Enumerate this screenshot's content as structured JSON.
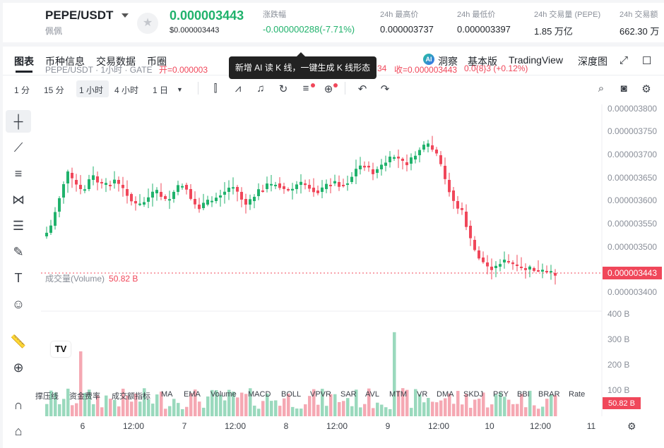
{
  "header": {
    "symbol": "PEPE/USDT",
    "cn_name": "佩佩",
    "price": "0.000003443",
    "price_usd": "$0.000003443",
    "stats": [
      {
        "label": "涨跌幅",
        "value": "-0.000000288(-7.71%)",
        "color": "green"
      },
      {
        "label": "24h 最高价",
        "value": "0.000003737"
      },
      {
        "label": "24h 最低价",
        "value": "0.000003397"
      },
      {
        "label": "24h 交易量 (PEPE)",
        "value": "1.85 万亿"
      },
      {
        "label": "24h 交易额",
        "value": "662.30 万"
      }
    ]
  },
  "tabs": [
    "图表",
    "币种信息",
    "交易数据",
    "币圈"
  ],
  "right_tabs": {
    "ai": "洞察",
    "basic": "基本版",
    "tv": "TradingView",
    "depth": "深度图"
  },
  "timeframes": [
    "1 分",
    "15 分",
    "1 小时",
    "4 小时",
    "1 日"
  ],
  "selected_timeframe": "1 小时",
  "tooltip": "新增 AI 读 K 线，一键生成 K 线形态",
  "ohlc": {
    "title": "PEPE/USDT · 1小时 · GATE",
    "open_label": "开=0.000003",
    "mid_text": "34",
    "close_label": "收=0.000003443",
    "change": "0.0{8}3 (+0.12%)"
  },
  "volume": {
    "label": "成交量(Volume)",
    "value": "50.82 B"
  },
  "price_axis": [
    "0.000003800",
    "0.000003750",
    "0.000003700",
    "0.000003650",
    "0.000003600",
    "0.000003550",
    "0.000003500",
    "0.000003400"
  ],
  "current_price_tag": "0.000003443",
  "volume_axis": [
    "400 B",
    "300 B",
    "200 B",
    "100 B"
  ],
  "volume_tag": "50.82 B",
  "time_axis": [
    "6",
    "12:00",
    "7",
    "12:00",
    "8",
    "12:00",
    "9",
    "12:00",
    "10",
    "12:00",
    "11"
  ],
  "indicators": [
    "撑压线",
    "资金费率",
    "成交额指标",
    "MA",
    "EMA",
    "Volume",
    "MACD",
    "BOLL",
    "VPVR",
    "SAR",
    "AVL",
    "MTM",
    "VR",
    "DMA",
    "SKDJ",
    "PSY",
    "BBI",
    "BRAR",
    "Rate"
  ],
  "tv_logo": "TV",
  "colors": {
    "up": "#20b26c",
    "down": "#f0475a",
    "accent": "#1f2329"
  }
}
